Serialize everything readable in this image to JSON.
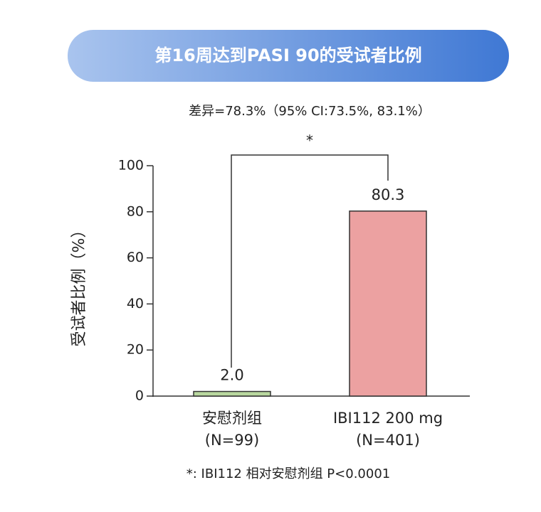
{
  "chart_data": {
    "type": "bar",
    "title": "第16周达到PASI 90的受试者比例",
    "annotation": "差异=78.3%（95% CI:73.5%, 83.1%）",
    "significance_marker": "*",
    "ylabel": "受试者比例（%）",
    "categories": [
      "安慰剂组",
      "IBI112 200 mg"
    ],
    "category_notes": [
      "(N=99)",
      "(N=401)"
    ],
    "values": [
      2.0,
      80.3
    ],
    "value_labels": [
      "2.0",
      "80.3"
    ],
    "colors": [
      "#b9d89f",
      "#eca1a1"
    ],
    "ylim": [
      0,
      100
    ],
    "yticks": [
      0,
      20,
      40,
      60,
      80,
      100
    ],
    "footnote": "*: IBI112 相对安慰剂组 P<0.0001"
  }
}
